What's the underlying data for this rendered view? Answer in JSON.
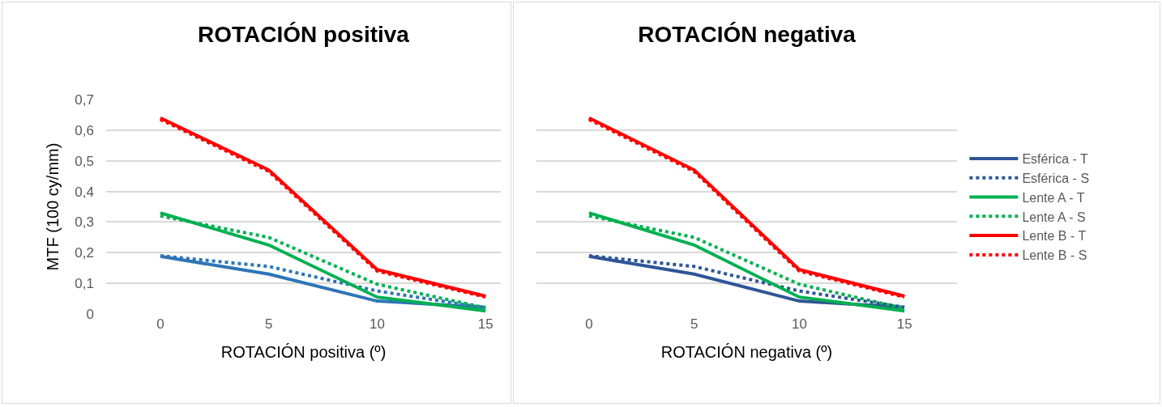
{
  "chart_data": [
    {
      "type": "line",
      "title": "ROTACIÓN positiva",
      "xlabel": "ROTACIÓN positiva (º)",
      "ylabel": "MTF (100 cy/mm)",
      "x": [
        0,
        5,
        10,
        15
      ],
      "xlim": [
        -2.5,
        15.7
      ],
      "xticks": [
        0,
        5,
        10,
        15
      ],
      "ylim": [
        0,
        0.7
      ],
      "yticks": [
        {
          "value": 0,
          "label": "0"
        },
        {
          "value": 0.1,
          "label": "0,1"
        },
        {
          "value": 0.2,
          "label": "0,2"
        },
        {
          "value": 0.3,
          "label": "0,3"
        },
        {
          "value": 0.4,
          "label": "0,4"
        },
        {
          "value": 0.5,
          "label": "0,5"
        },
        {
          "value": 0.6,
          "label": "0,6"
        },
        {
          "value": 0.7,
          "label": "0,7"
        }
      ],
      "grid": "y",
      "legend": false,
      "marker": "none",
      "series": [
        {
          "color": "#2e75b6",
          "line_style": "solid",
          "values": [
            0.188,
            0.13,
            0.042,
            0.022
          ]
        },
        {
          "color": "#2e75b6",
          "line_style": "dotted",
          "values": [
            0.19,
            0.155,
            0.075,
            0.02
          ]
        },
        {
          "color": "#00b050",
          "line_style": "solid",
          "values": [
            0.33,
            0.225,
            0.055,
            0.01
          ]
        },
        {
          "color": "#00b050",
          "line_style": "dotted",
          "values": [
            0.32,
            0.25,
            0.097,
            0.02
          ]
        },
        {
          "color": "#ff0000",
          "line_style": "solid",
          "values": [
            0.64,
            0.47,
            0.145,
            0.058
          ]
        },
        {
          "color": "#ff0000",
          "line_style": "dotted",
          "values": [
            0.635,
            0.465,
            0.14,
            0.055
          ]
        }
      ]
    },
    {
      "type": "line",
      "title": "ROTACIÓN negativa",
      "xlabel": "ROTACIÓN negativa (º)",
      "x": [
        0,
        5,
        10,
        15
      ],
      "xlim": [
        -2.5,
        17.5
      ],
      "xticks": [
        0,
        5,
        10,
        15
      ],
      "ylim": [
        0,
        0.7
      ],
      "yticks": [
        0,
        0.1,
        0.2,
        0.3,
        0.4,
        0.5,
        0.6,
        0.7
      ],
      "tick_labels": "x",
      "grid": "y",
      "legend": "right",
      "marker": "none",
      "series": [
        {
          "name": "Esférica - T",
          "color": "#2f5597",
          "line_style": "solid",
          "values": [
            0.188,
            0.13,
            0.042,
            0.022
          ]
        },
        {
          "name": "Esférica - S",
          "color": "#2f5597",
          "line_style": "dotted",
          "values": [
            0.19,
            0.155,
            0.075,
            0.022
          ]
        },
        {
          "name": "Lente A - T",
          "color": "#00b050",
          "line_style": "solid",
          "values": [
            0.33,
            0.225,
            0.055,
            0.01
          ]
        },
        {
          "name": "Lente A - S",
          "color": "#00b050",
          "line_style": "dotted",
          "values": [
            0.32,
            0.25,
            0.097,
            0.018
          ]
        },
        {
          "name": "Lente B - T",
          "color": "#ff0000",
          "line_style": "solid",
          "values": [
            0.64,
            0.47,
            0.145,
            0.058
          ]
        },
        {
          "name": "Lente B - S",
          "color": "#ff0000",
          "line_style": "dotted",
          "values": [
            0.635,
            0.465,
            0.14,
            0.055
          ]
        }
      ]
    }
  ]
}
